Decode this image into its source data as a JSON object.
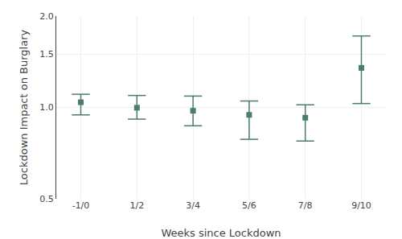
{
  "chart_data": {
    "type": "scatter",
    "categories": [
      "-1/0",
      "1/2",
      "3/4",
      "5/6",
      "7/8",
      "9/10"
    ],
    "values": [
      1.04,
      0.998,
      0.975,
      0.945,
      0.925,
      1.35
    ],
    "ci_lower": [
      0.945,
      0.915,
      0.87,
      0.785,
      0.775,
      1.03
    ],
    "ci_upper": [
      1.105,
      1.095,
      1.09,
      1.05,
      1.02,
      1.72
    ],
    "reference_line": 1.0,
    "xlabel": "Weeks since Lockdown",
    "ylabel": "Lockdown Impact on Burglary",
    "color": "#4a7c6f",
    "marker": "square",
    "log": "y",
    "ylim": [
      0.5,
      2.0
    ],
    "yticks": [
      0.5,
      {
        "value": 1.0,
        "label": "1.0"
      },
      1.5,
      {
        "value": 2.0,
        "label": "2.0"
      }
    ],
    "grid": true
  }
}
